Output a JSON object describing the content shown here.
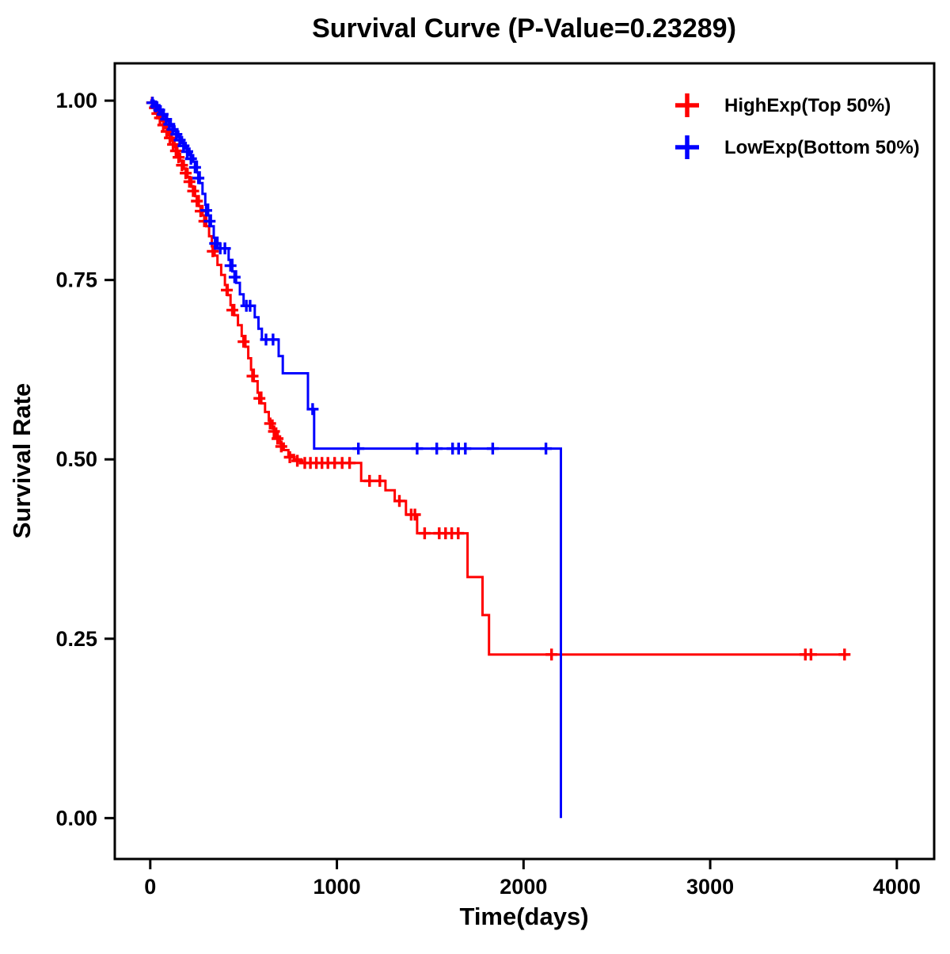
{
  "page": {
    "background_color": "#FFFFFF",
    "text_color": "#000000"
  },
  "chart_data": {
    "type": "line",
    "variant": "kaplan-meier-step",
    "title": "Survival Curve (P-Value=0.23289)",
    "p_value": "0.23289",
    "xlabel": "Time(days)",
    "ylabel": "Survival Rate",
    "xlim": [
      -190,
      4200
    ],
    "ylim": [
      -0.057,
      1.052
    ],
    "xticks": {
      "values": [
        0,
        1000,
        2000,
        3000,
        4000
      ],
      "labels": [
        "0",
        "1000",
        "2000",
        "3000",
        "4000"
      ]
    },
    "yticks": {
      "values": [
        0,
        0.25,
        0.5,
        0.75,
        1
      ],
      "labels": [
        "0.00",
        "0.25",
        "0.50",
        "0.75",
        "1.00"
      ]
    },
    "grid": false,
    "legend_position": "top-right",
    "series": [
      {
        "id": "highexp",
        "name": "HighExp(Top 50%)",
        "color": "#FF0000",
        "steps": [
          [
            0,
            1.0
          ],
          [
            15,
            0.993
          ],
          [
            30,
            0.986
          ],
          [
            45,
            0.979
          ],
          [
            60,
            0.972
          ],
          [
            80,
            0.962
          ],
          [
            100,
            0.952
          ],
          [
            115,
            0.944
          ],
          [
            130,
            0.935
          ],
          [
            145,
            0.926
          ],
          [
            160,
            0.916
          ],
          [
            180,
            0.905
          ],
          [
            200,
            0.893
          ],
          [
            220,
            0.88
          ],
          [
            240,
            0.867
          ],
          [
            260,
            0.853
          ],
          [
            280,
            0.84
          ],
          [
            300,
            0.825
          ],
          [
            315,
            0.811
          ],
          [
            330,
            0.797
          ],
          [
            345,
            0.784
          ],
          [
            360,
            0.771
          ],
          [
            380,
            0.757
          ],
          [
            400,
            0.743
          ],
          [
            415,
            0.729
          ],
          [
            430,
            0.715
          ],
          [
            450,
            0.701
          ],
          [
            470,
            0.687
          ],
          [
            490,
            0.672
          ],
          [
            510,
            0.657
          ],
          [
            525,
            0.641
          ],
          [
            540,
            0.625
          ],
          [
            555,
            0.609
          ],
          [
            575,
            0.593
          ],
          [
            595,
            0.578
          ],
          [
            615,
            0.566
          ],
          [
            635,
            0.554
          ],
          [
            655,
            0.543
          ],
          [
            675,
            0.532
          ],
          [
            695,
            0.522
          ],
          [
            715,
            0.513
          ],
          [
            740,
            0.506
          ],
          [
            770,
            0.5
          ],
          [
            810,
            0.495
          ],
          [
            1130,
            0.47
          ],
          [
            1260,
            0.457
          ],
          [
            1310,
            0.442
          ],
          [
            1370,
            0.423
          ],
          [
            1430,
            0.397
          ],
          [
            1700,
            0.336
          ],
          [
            1780,
            0.283
          ],
          [
            1815,
            0.228
          ],
          [
            3740,
            0.228
          ]
        ],
        "censors": [
          [
            10,
            0.997
          ],
          [
            25,
            0.99
          ],
          [
            38,
            0.982
          ],
          [
            52,
            0.976
          ],
          [
            70,
            0.966
          ],
          [
            88,
            0.957
          ],
          [
            105,
            0.948
          ],
          [
            122,
            0.939
          ],
          [
            138,
            0.93
          ],
          [
            152,
            0.921
          ],
          [
            170,
            0.91
          ],
          [
            190,
            0.899
          ],
          [
            210,
            0.887
          ],
          [
            230,
            0.874
          ],
          [
            250,
            0.86
          ],
          [
            270,
            0.846
          ],
          [
            290,
            0.832
          ],
          [
            335,
            0.79
          ],
          [
            410,
            0.736
          ],
          [
            440,
            0.708
          ],
          [
            500,
            0.664
          ],
          [
            548,
            0.616
          ],
          [
            585,
            0.585
          ],
          [
            642,
            0.55
          ],
          [
            663,
            0.539
          ],
          [
            682,
            0.529
          ],
          [
            702,
            0.518
          ],
          [
            748,
            0.503
          ],
          [
            788,
            0.498
          ],
          [
            828,
            0.495
          ],
          [
            858,
            0.495
          ],
          [
            890,
            0.495
          ],
          [
            920,
            0.495
          ],
          [
            952,
            0.495
          ],
          [
            988,
            0.495
          ],
          [
            1028,
            0.495
          ],
          [
            1068,
            0.495
          ],
          [
            1175,
            0.47
          ],
          [
            1230,
            0.47
          ],
          [
            1335,
            0.442
          ],
          [
            1398,
            0.423
          ],
          [
            1418,
            0.423
          ],
          [
            1470,
            0.397
          ],
          [
            1548,
            0.397
          ],
          [
            1582,
            0.397
          ],
          [
            1615,
            0.397
          ],
          [
            1650,
            0.397
          ],
          [
            2150,
            0.228
          ],
          [
            3510,
            0.228
          ],
          [
            3540,
            0.228
          ],
          [
            3720,
            0.228
          ]
        ]
      },
      {
        "id": "lowexp",
        "name": "LowExp(Bottom 50%)",
        "color": "#0000FF",
        "steps": [
          [
            0,
            1.0
          ],
          [
            18,
            0.995
          ],
          [
            36,
            0.99
          ],
          [
            54,
            0.984
          ],
          [
            72,
            0.978
          ],
          [
            90,
            0.971
          ],
          [
            110,
            0.964
          ],
          [
            130,
            0.957
          ],
          [
            150,
            0.949
          ],
          [
            170,
            0.941
          ],
          [
            190,
            0.933
          ],
          [
            210,
            0.924
          ],
          [
            230,
            0.915
          ],
          [
            250,
            0.9
          ],
          [
            265,
            0.885
          ],
          [
            280,
            0.87
          ],
          [
            295,
            0.855
          ],
          [
            310,
            0.84
          ],
          [
            325,
            0.825
          ],
          [
            340,
            0.809
          ],
          [
            360,
            0.794
          ],
          [
            420,
            0.778
          ],
          [
            440,
            0.762
          ],
          [
            460,
            0.746
          ],
          [
            480,
            0.73
          ],
          [
            500,
            0.714
          ],
          [
            560,
            0.698
          ],
          [
            580,
            0.682
          ],
          [
            598,
            0.667
          ],
          [
            688,
            0.644
          ],
          [
            710,
            0.62
          ],
          [
            845,
            0.57
          ],
          [
            878,
            0.515
          ],
          [
            2200,
            0.515
          ],
          [
            2200,
            0.0
          ]
        ],
        "censors": [
          [
            12,
            0.997
          ],
          [
            30,
            0.992
          ],
          [
            48,
            0.987
          ],
          [
            66,
            0.981
          ],
          [
            85,
            0.974
          ],
          [
            102,
            0.967
          ],
          [
            120,
            0.96
          ],
          [
            140,
            0.953
          ],
          [
            158,
            0.945
          ],
          [
            178,
            0.937
          ],
          [
            198,
            0.929
          ],
          [
            218,
            0.919
          ],
          [
            240,
            0.907
          ],
          [
            258,
            0.892
          ],
          [
            300,
            0.847
          ],
          [
            318,
            0.832
          ],
          [
            348,
            0.801
          ],
          [
            375,
            0.794
          ],
          [
            400,
            0.794
          ],
          [
            430,
            0.77
          ],
          [
            452,
            0.754
          ],
          [
            515,
            0.714
          ],
          [
            535,
            0.714
          ],
          [
            620,
            0.667
          ],
          [
            658,
            0.667
          ],
          [
            870,
            0.57
          ],
          [
            1115,
            0.515
          ],
          [
            1430,
            0.515
          ],
          [
            1535,
            0.515
          ],
          [
            1620,
            0.515
          ],
          [
            1652,
            0.515
          ],
          [
            1688,
            0.515
          ],
          [
            1835,
            0.515
          ],
          [
            2120,
            0.515
          ]
        ]
      }
    ]
  }
}
